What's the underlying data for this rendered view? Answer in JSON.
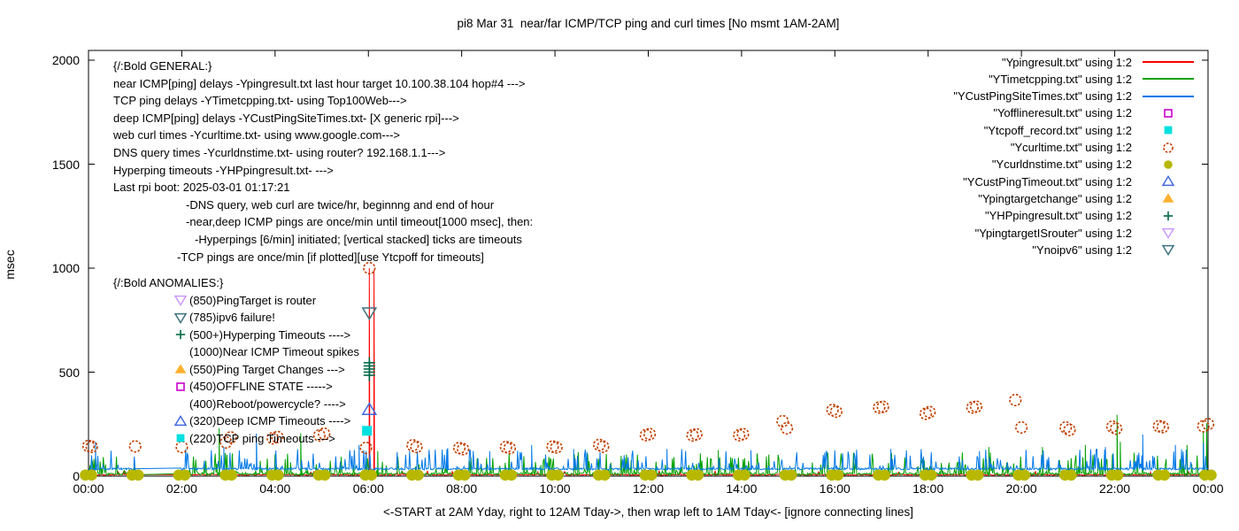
{
  "title": "pi8 Mar 31  near/far ICMP/TCP ping and curl times [No msmt 1AM-2AM]",
  "axes": {
    "y_label": "msec",
    "y_ticks": [
      0,
      500,
      1000,
      1500,
      2000
    ],
    "x_tick_labels": [
      "00:00",
      "02:00",
      "04:00",
      "06:00",
      "08:00",
      "10:00",
      "12:00",
      "14:00",
      "16:00",
      "18:00",
      "20:00",
      "22:00",
      "00:00"
    ],
    "x_caption": "<-START at 2AM Yday, right to 12AM Tday->, then wrap left to 1AM Tday<- [ignore connecting lines]",
    "y_range": [
      0,
      2000
    ],
    "x_range_hours": [
      0,
      24
    ]
  },
  "legend": [
    {
      "label": "\"Ypingresult.txt\" using 1:2",
      "marker": "line",
      "color": "#ff0000"
    },
    {
      "label": "\"YTimetcpping.txt\" using 1:2",
      "marker": "line",
      "color": "#00a000"
    },
    {
      "label": "\"YCustPingSiteTimes.txt\" using 1:2",
      "marker": "line",
      "color": "#0078e7"
    },
    {
      "label": "\"Yofflineresult.txt\" using 1:2",
      "marker": "open-square",
      "color": "#cc00cc"
    },
    {
      "label": "\"Ytcpoff_record.txt\" using 1:2",
      "marker": "filled-square",
      "color": "#00e0e0"
    },
    {
      "label": "\"Ycurltime.txt\" using 1:2",
      "marker": "open-circle",
      "color": "#c04000"
    },
    {
      "label": "\"Ycurldnstime.txt\" using 1:2",
      "marker": "filled-circle",
      "color": "#b8b800"
    },
    {
      "label": "\"YCustPingTimeout.txt\" using 1:2",
      "marker": "open-triangle-up",
      "color": "#4169e1"
    },
    {
      "label": "\"Ypingtargetchange\" using 1:2",
      "marker": "filled-triangle-up",
      "color": "#ffb02e"
    },
    {
      "label": "\"YHPpingresult.txt\" using 1:2",
      "marker": "plus",
      "color": "#006848"
    },
    {
      "label": "\"YpingtargetISrouter\" using 1:2",
      "marker": "open-triangle-down",
      "color": "#cc99ff"
    },
    {
      "label": "\"Ynoipv6\" using 1:2",
      "marker": "open-triangle-down",
      "color": "#3d7080"
    }
  ],
  "annotations": {
    "general": [
      {
        "text": "{/:Bold GENERAL:}",
        "indent": 0
      },
      {
        "text": "near ICMP[ping] delays -Ypingresult.txt last hour target 10.100.38.104 hop#4 --->",
        "indent": 0
      },
      {
        "text": "TCP ping delays -YTimetcpping.txt- using Top100Web--->",
        "indent": 0
      },
      {
        "text": "deep ICMP[ping] delays -YCustPingSiteTimes.txt- [X generic rpi]--->",
        "indent": 0
      },
      {
        "text": "web curl times -Ycurltime.txt- using www.google.com--->",
        "indent": 0
      },
      {
        "text": "DNS query times -Ycurldnstime.txt- using router? 192.168.1.1--->",
        "indent": 0
      },
      {
        "text": "Hyperping timeouts -YHPpingresult.txt- --->",
        "indent": 0
      },
      {
        "text": "Last rpi boot: 2025-03-01 01:17:21",
        "indent": 0
      },
      {
        "text": "-DNS query, web curl are twice/hr, beginnng and end of hour",
        "indent": 82
      },
      {
        "text": "-near,deep ICMP pings are once/min until timeout[1000 msec], then:",
        "indent": 82
      },
      {
        "text": "-Hyperpings [6/min] initiated; [vertical stacked] ticks are timeouts",
        "indent": 92
      },
      {
        "text": "-TCP pings are once/min [if plotted][use Ytcpoff for timeouts]",
        "indent": 72
      }
    ],
    "anomalies_title": "{/:Bold ANOMALIES:}",
    "anomalies": [
      {
        "marker": "open-triangle-down",
        "color": "#cc99ff",
        "text": "(850)PingTarget is router"
      },
      {
        "marker": "open-triangle-down",
        "color": "#3d7080",
        "text": "(785)ipv6 failure!"
      },
      {
        "marker": "plus",
        "color": "#006848",
        "text": "(500+)Hyperping Timeouts ---->"
      },
      {
        "marker": null,
        "color": null,
        "text": "(1000)Near ICMP Timeout spikes"
      },
      {
        "marker": "filled-triangle-up",
        "color": "#ffb02e",
        "text": "(550)Ping Target Changes --->"
      },
      {
        "marker": "open-square",
        "color": "#cc00cc",
        "text": "(450)OFFLINE STATE ----->"
      },
      {
        "marker": null,
        "color": null,
        "text": "(400)Reboot/powercycle? ---->"
      },
      {
        "marker": "open-triangle-up",
        "color": "#4169e1",
        "text": "(320)Deep ICMP Timeouts ---->"
      },
      {
        "marker": "filled-square",
        "color": "#00e0e0",
        "text": "(220)TCP ping Timeouts --->"
      }
    ]
  },
  "chart_data": {
    "type": "line+scatter",
    "x_unit": "time of day (hours 00:00-24:00)",
    "y_unit": "msec",
    "x_range": [
      0,
      24
    ],
    "y_range": [
      0,
      2000
    ],
    "grid": false,
    "legend_position": "top-right",
    "no_measurement_gap_hours": [
      1,
      2
    ],
    "series": [
      {
        "name": "Ypingresult.txt",
        "style": "noisy-line",
        "color": "#ff0000",
        "baseline": 4,
        "noise_small": 5,
        "spike_chance": 0.02,
        "spike_max": 8,
        "seed": 7,
        "spikes": [
          [
            6.02,
            1000
          ],
          [
            6.12,
            990
          ]
        ]
      },
      {
        "name": "YTimetcpping.txt",
        "style": "noisy-line",
        "color": "#00a000",
        "baseline": 5,
        "noise_small": 12,
        "spike_chance": 0.17,
        "spike_max": 95,
        "seed": 13,
        "spikes": [
          [
            2.8,
            230
          ],
          [
            4.55,
            205
          ],
          [
            6.2,
            120
          ],
          [
            13.5,
            125
          ],
          [
            19.3,
            140
          ],
          [
            20.45,
            140
          ],
          [
            21.37,
            150
          ],
          [
            22.05,
            295
          ],
          [
            22.12,
            165
          ],
          [
            23.55,
            150
          ],
          [
            23.9,
            210
          ],
          [
            23.97,
            255
          ]
        ]
      },
      {
        "name": "YCustPingSiteTimes.txt",
        "style": "noisy-line",
        "color": "#0078e7",
        "baseline": 30,
        "noise_small": 10,
        "spike_chance": 0.15,
        "spike_max": 85,
        "seed": 29,
        "spikes": [
          [
            0.15,
            165
          ],
          [
            2.9,
            140
          ],
          [
            3.6,
            205
          ],
          [
            5.8,
            150
          ],
          [
            7.7,
            135
          ],
          [
            8.6,
            120
          ],
          [
            9.5,
            150
          ],
          [
            10.4,
            130
          ],
          [
            12.4,
            130
          ],
          [
            14.2,
            125
          ],
          [
            17.2,
            130
          ],
          [
            19.1,
            120
          ],
          [
            21.8,
            140
          ],
          [
            22.6,
            200
          ],
          [
            23.3,
            150
          ],
          [
            23.9,
            160
          ]
        ]
      },
      {
        "name": "Yofflineresult.txt",
        "style": "scatter",
        "marker": "open-square",
        "color": "#cc00cc",
        "points": []
      },
      {
        "name": "Ytcpoff_record.txt",
        "style": "scatter",
        "marker": "filled-square",
        "color": "#00e0e0",
        "points": [
          [
            5.97,
            218
          ]
        ]
      },
      {
        "name": "Ycurltime.txt",
        "style": "scatter",
        "marker": "open-circle",
        "color": "#c04000",
        "points": [
          [
            0,
            145
          ],
          [
            0.07,
            141
          ],
          [
            1,
            143
          ],
          [
            2,
            140
          ],
          [
            2.95,
            162
          ],
          [
            3.05,
            186
          ],
          [
            3.95,
            182
          ],
          [
            4.05,
            188
          ],
          [
            4.95,
            196
          ],
          [
            5.05,
            204
          ],
          [
            5.95,
            136
          ],
          [
            6.02,
            1000
          ],
          [
            6.95,
            148
          ],
          [
            7.03,
            140
          ],
          [
            7.95,
            135
          ],
          [
            8.03,
            130
          ],
          [
            8.95,
            140
          ],
          [
            9.03,
            135
          ],
          [
            9.95,
            142
          ],
          [
            10.03,
            138
          ],
          [
            10.95,
            150
          ],
          [
            11.03,
            142
          ],
          [
            11.95,
            197
          ],
          [
            12.03,
            202
          ],
          [
            12.95,
            196
          ],
          [
            13.03,
            201
          ],
          [
            13.95,
            197
          ],
          [
            14.03,
            202
          ],
          [
            14.88,
            264
          ],
          [
            14.97,
            230
          ],
          [
            15.95,
            318
          ],
          [
            16.03,
            310
          ],
          [
            16.95,
            330
          ],
          [
            17.03,
            333
          ],
          [
            17.95,
            300
          ],
          [
            18.03,
            308
          ],
          [
            18.95,
            330
          ],
          [
            19.03,
            334
          ],
          [
            19.87,
            366
          ],
          [
            20.0,
            234
          ],
          [
            20.95,
            234
          ],
          [
            21.03,
            222
          ],
          [
            21.95,
            238
          ],
          [
            22.03,
            228
          ],
          [
            22.95,
            240
          ],
          [
            23.03,
            236
          ],
          [
            23.9,
            240
          ],
          [
            24,
            250
          ]
        ]
      },
      {
        "name": "Ycurldnstime.txt",
        "style": "scatter",
        "marker": "filled-circle-pair",
        "color": "#b8b800",
        "points": [
          [
            0,
            5
          ],
          [
            1,
            5
          ],
          [
            2,
            5
          ],
          [
            3,
            5
          ],
          [
            4,
            5
          ],
          [
            5,
            5
          ],
          [
            6,
            5
          ],
          [
            7,
            5
          ],
          [
            8,
            5
          ],
          [
            9,
            5
          ],
          [
            10,
            5
          ],
          [
            11,
            5
          ],
          [
            12,
            5
          ],
          [
            13,
            5
          ],
          [
            14,
            5
          ],
          [
            15,
            5
          ],
          [
            16,
            5
          ],
          [
            17,
            5
          ],
          [
            18,
            5
          ],
          [
            19,
            5
          ],
          [
            20,
            5
          ],
          [
            21,
            5
          ],
          [
            22,
            5
          ],
          [
            23,
            5
          ],
          [
            24,
            5
          ]
        ]
      },
      {
        "name": "YCustPingTimeout.txt",
        "style": "scatter",
        "marker": "open-triangle-up",
        "color": "#4169e1",
        "points": [
          [
            6.02,
            320
          ]
        ]
      },
      {
        "name": "Ypingtargetchange",
        "style": "scatter",
        "marker": "filled-triangle-up",
        "color": "#ffb02e",
        "points": []
      },
      {
        "name": "YHPpingresult.txt",
        "style": "scatter",
        "marker": "plus",
        "color": "#006848",
        "points": [
          [
            6.02,
            485
          ],
          [
            6.02,
            500
          ],
          [
            6.02,
            515
          ],
          [
            6.02,
            530
          ],
          [
            6.02,
            545
          ]
        ]
      },
      {
        "name": "YpingtargetISrouter",
        "style": "scatter",
        "marker": "open-triangle-down",
        "color": "#cc99ff",
        "points": []
      },
      {
        "name": "Ynoipv6",
        "style": "scatter",
        "marker": "open-triangle-down",
        "color": "#3d7080",
        "points": [
          [
            6.02,
            785
          ]
        ]
      }
    ]
  }
}
